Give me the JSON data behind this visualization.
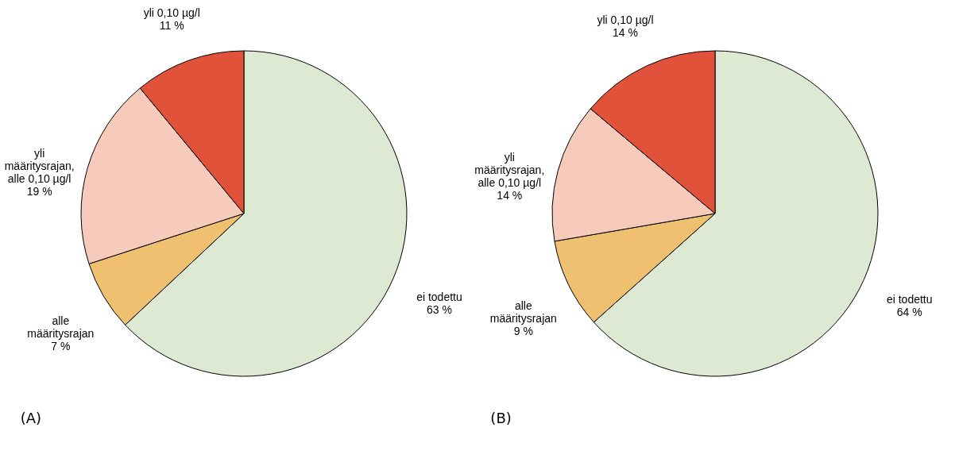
{
  "chart_data": [
    {
      "type": "pie",
      "title": "(A)",
      "categories": [
        "ei todettu",
        "alle määritysrajan",
        "yli määritysrajan, alle 0,10 µg/l",
        "yli 0,10 µg/l"
      ],
      "values": [
        63,
        7,
        19,
        11
      ],
      "value_labels": [
        "63 %",
        "7 %",
        "19 %",
        "11 %"
      ],
      "colors": [
        "#dde9d2",
        "#eec070",
        "#f6cbbb",
        "#e0533a"
      ],
      "legend": false
    },
    {
      "type": "pie",
      "title": "(B)",
      "categories": [
        "ei todettu",
        "alle määritysrajan",
        "yli määritysrajan, alle 0,10 µg/l",
        "yli 0,10 µg/l"
      ],
      "values": [
        64,
        9,
        14,
        14
      ],
      "value_labels": [
        "64 %",
        "9 %",
        "14 %",
        "14 %"
      ],
      "colors": [
        "#dde9d2",
        "#eec070",
        "#f6cbbb",
        "#e0533a"
      ],
      "legend": false
    }
  ]
}
